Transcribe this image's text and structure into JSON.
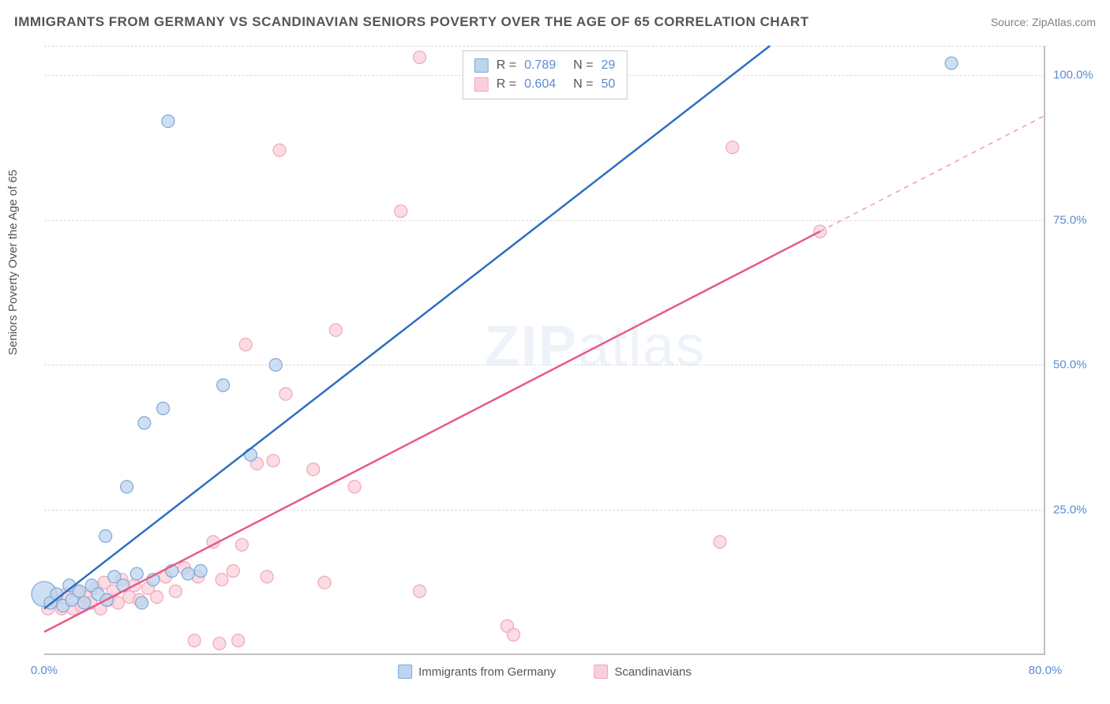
{
  "title": "IMMIGRANTS FROM GERMANY VS SCANDINAVIAN SENIORS POVERTY OVER THE AGE OF 65 CORRELATION CHART",
  "source_prefix": "Source: ",
  "source_link": "ZipAtlas.com",
  "yaxis_label": "Seniors Poverty Over the Age of 65",
  "watermark_bold": "ZIP",
  "watermark_rest": "atlas",
  "chart": {
    "type": "scatter",
    "xlim": [
      0,
      80
    ],
    "ylim": [
      0,
      105
    ],
    "yticks": [
      {
        "v": 25,
        "label": "25.0%"
      },
      {
        "v": 50,
        "label": "50.0%"
      },
      {
        "v": 75,
        "label": "75.0%"
      },
      {
        "v": 100,
        "label": "100.0%"
      }
    ],
    "xticks": [
      {
        "v": 0,
        "label": "0.0%"
      },
      {
        "v": 80,
        "label": "80.0%"
      }
    ],
    "grid_color": "#dcdcdc",
    "axis_color": "#c0c0c0",
    "background_color": "#ffffff",
    "tick_color": "#5b8bd4",
    "marker_radius": 8,
    "marker_stroke_width": 1.2,
    "trend_stroke_width": 2.5,
    "series": [
      {
        "key": "germany",
        "label": "Immigrants from Germany",
        "fill": "#bcd4ef",
        "stroke": "#7ea8d8",
        "line_color": "#2e6fc0",
        "trend": {
          "x1": 0,
          "y1": 8,
          "x2": 58,
          "y2": 105
        },
        "dash_extend": null,
        "R": "0.789",
        "N": "29",
        "points": [
          [
            0.0,
            10.5,
            16
          ],
          [
            0.5,
            9.0,
            8
          ],
          [
            1.0,
            10.5,
            8
          ],
          [
            1.5,
            8.5,
            8
          ],
          [
            2.0,
            12.0,
            8
          ],
          [
            2.2,
            9.5,
            8
          ],
          [
            2.8,
            11.0,
            8
          ],
          [
            3.2,
            9.0,
            8
          ],
          [
            3.8,
            12.0,
            8
          ],
          [
            4.3,
            10.5,
            8
          ],
          [
            4.9,
            20.5,
            8
          ],
          [
            5.0,
            9.5,
            8
          ],
          [
            5.6,
            13.5,
            8
          ],
          [
            6.3,
            12.0,
            8
          ],
          [
            6.6,
            29.0,
            8
          ],
          [
            7.4,
            14.0,
            8
          ],
          [
            7.8,
            9.0,
            8
          ],
          [
            8.0,
            40.0,
            8
          ],
          [
            8.7,
            13.0,
            8
          ],
          [
            9.5,
            42.5,
            8
          ],
          [
            9.9,
            92.0,
            8
          ],
          [
            10.2,
            14.5,
            8
          ],
          [
            11.5,
            14.0,
            8
          ],
          [
            12.5,
            14.5,
            8
          ],
          [
            14.3,
            46.5,
            8
          ],
          [
            16.5,
            34.5,
            8
          ],
          [
            18.5,
            50.0,
            8
          ],
          [
            43.0,
            103.0,
            8
          ],
          [
            72.5,
            102.0,
            8
          ]
        ]
      },
      {
        "key": "scandinavian",
        "label": "Scandinavians",
        "fill": "#f9d0da",
        "stroke": "#f0a6bb",
        "line_color": "#e65a87",
        "trend": {
          "x1": 0,
          "y1": 4,
          "x2": 62,
          "y2": 73
        },
        "dash_extend": {
          "x1": 62,
          "y1": 73,
          "x2": 80,
          "y2": 93
        },
        "R": "0.604",
        "N": "50",
        "points": [
          [
            0.3,
            8.0,
            8
          ],
          [
            0.9,
            9.5,
            8
          ],
          [
            1.4,
            8.0,
            8
          ],
          [
            1.8,
            10.5,
            8
          ],
          [
            2.3,
            8.0,
            8
          ],
          [
            2.6,
            11.0,
            8
          ],
          [
            3.0,
            8.5,
            8
          ],
          [
            3.3,
            10.0,
            8
          ],
          [
            3.7,
            9.0,
            8
          ],
          [
            4.1,
            11.5,
            8
          ],
          [
            4.5,
            8.0,
            8
          ],
          [
            4.8,
            12.5,
            8
          ],
          [
            5.2,
            9.5,
            8
          ],
          [
            5.5,
            11.0,
            8
          ],
          [
            5.9,
            9.0,
            8
          ],
          [
            6.2,
            13.0,
            8
          ],
          [
            6.8,
            10.0,
            8
          ],
          [
            7.2,
            12.0,
            8
          ],
          [
            7.6,
            9.5,
            8
          ],
          [
            8.3,
            11.5,
            8
          ],
          [
            9.0,
            10.0,
            8
          ],
          [
            9.7,
            13.5,
            8
          ],
          [
            10.5,
            11.0,
            8
          ],
          [
            11.2,
            15.0,
            8
          ],
          [
            12.0,
            2.5,
            8
          ],
          [
            12.3,
            13.5,
            8
          ],
          [
            13.5,
            19.5,
            8
          ],
          [
            14.0,
            2.0,
            8
          ],
          [
            14.2,
            13.0,
            8
          ],
          [
            15.1,
            14.5,
            8
          ],
          [
            15.5,
            2.5,
            8
          ],
          [
            15.8,
            19.0,
            8
          ],
          [
            16.1,
            53.5,
            8
          ],
          [
            17.0,
            33.0,
            8
          ],
          [
            17.8,
            13.5,
            8
          ],
          [
            18.3,
            33.5,
            8
          ],
          [
            18.8,
            87.0,
            8
          ],
          [
            19.3,
            45.0,
            8
          ],
          [
            21.5,
            32.0,
            8
          ],
          [
            22.4,
            12.5,
            8
          ],
          [
            23.3,
            56.0,
            8
          ],
          [
            24.8,
            29.0,
            8
          ],
          [
            28.5,
            76.5,
            8
          ],
          [
            30.0,
            11.0,
            8
          ],
          [
            30.0,
            103.0,
            8
          ],
          [
            37.0,
            5.0,
            8
          ],
          [
            37.5,
            3.5,
            8
          ],
          [
            54.0,
            19.5,
            8
          ],
          [
            55.0,
            87.5,
            8
          ],
          [
            62.0,
            73.0,
            8
          ]
        ]
      }
    ]
  }
}
